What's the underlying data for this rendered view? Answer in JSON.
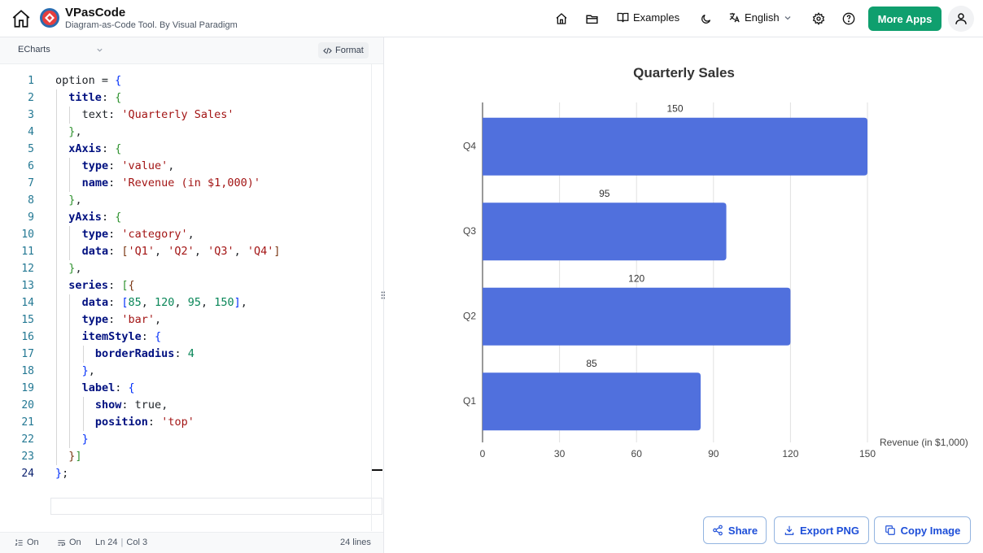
{
  "header": {
    "app_name": "VPasCode",
    "tagline": "Diagram-as-Code Tool. By Visual Paradigm",
    "examples_label": "Examples",
    "language_label": "English",
    "more_apps_label": "More Apps"
  },
  "editor": {
    "language": "ECharts",
    "format_label": "Format",
    "lines": [
      {
        "n": "1",
        "indent": 0,
        "tokens": [
          [
            "plain",
            "option"
          ],
          [
            "plain",
            " = "
          ],
          [
            "b1",
            "{"
          ]
        ]
      },
      {
        "n": "2",
        "indent": 1,
        "tokens": [
          [
            "key",
            "title"
          ],
          [
            "plain",
            ": "
          ],
          [
            "b2",
            "{"
          ]
        ]
      },
      {
        "n": "3",
        "indent": 2,
        "tokens": [
          [
            "plain",
            "text: "
          ],
          [
            "str",
            "'Quarterly Sales'"
          ]
        ]
      },
      {
        "n": "4",
        "indent": 1,
        "tokens": [
          [
            "b2",
            "}"
          ],
          [
            "plain",
            ","
          ]
        ]
      },
      {
        "n": "5",
        "indent": 1,
        "tokens": [
          [
            "key",
            "xAxis"
          ],
          [
            "plain",
            ": "
          ],
          [
            "b2",
            "{"
          ]
        ]
      },
      {
        "n": "6",
        "indent": 2,
        "tokens": [
          [
            "key",
            "type"
          ],
          [
            "plain",
            ": "
          ],
          [
            "str",
            "'value'"
          ],
          [
            "plain",
            ","
          ]
        ]
      },
      {
        "n": "7",
        "indent": 2,
        "tokens": [
          [
            "key",
            "name"
          ],
          [
            "plain",
            ": "
          ],
          [
            "str",
            "'Revenue (in $1,000)'"
          ]
        ]
      },
      {
        "n": "8",
        "indent": 1,
        "tokens": [
          [
            "b2",
            "}"
          ],
          [
            "plain",
            ","
          ]
        ]
      },
      {
        "n": "9",
        "indent": 1,
        "tokens": [
          [
            "key",
            "yAxis"
          ],
          [
            "plain",
            ": "
          ],
          [
            "b2",
            "{"
          ]
        ]
      },
      {
        "n": "10",
        "indent": 2,
        "tokens": [
          [
            "key",
            "type"
          ],
          [
            "plain",
            ": "
          ],
          [
            "str",
            "'category'"
          ],
          [
            "plain",
            ","
          ]
        ]
      },
      {
        "n": "11",
        "indent": 2,
        "tokens": [
          [
            "key",
            "data"
          ],
          [
            "plain",
            ": "
          ],
          [
            "b3",
            "["
          ],
          [
            "str",
            "'Q1'"
          ],
          [
            "plain",
            ", "
          ],
          [
            "str",
            "'Q2'"
          ],
          [
            "plain",
            ", "
          ],
          [
            "str",
            "'Q3'"
          ],
          [
            "plain",
            ", "
          ],
          [
            "str",
            "'Q4'"
          ],
          [
            "b3",
            "]"
          ]
        ]
      },
      {
        "n": "12",
        "indent": 1,
        "tokens": [
          [
            "b2",
            "}"
          ],
          [
            "plain",
            ","
          ]
        ]
      },
      {
        "n": "13",
        "indent": 1,
        "tokens": [
          [
            "key",
            "series"
          ],
          [
            "plain",
            ": "
          ],
          [
            "b2",
            "["
          ],
          [
            "b3",
            "{"
          ]
        ]
      },
      {
        "n": "14",
        "indent": 2,
        "tokens": [
          [
            "key",
            "data"
          ],
          [
            "plain",
            ": "
          ],
          [
            "b1",
            "["
          ],
          [
            "num",
            "85"
          ],
          [
            "plain",
            ", "
          ],
          [
            "num",
            "120"
          ],
          [
            "plain",
            ", "
          ],
          [
            "num",
            "95"
          ],
          [
            "plain",
            ", "
          ],
          [
            "num",
            "150"
          ],
          [
            "b1",
            "]"
          ],
          [
            "plain",
            ","
          ]
        ]
      },
      {
        "n": "15",
        "indent": 2,
        "tokens": [
          [
            "key",
            "type"
          ],
          [
            "plain",
            ": "
          ],
          [
            "str",
            "'bar'"
          ],
          [
            "plain",
            ","
          ]
        ]
      },
      {
        "n": "16",
        "indent": 2,
        "tokens": [
          [
            "key",
            "itemStyle"
          ],
          [
            "plain",
            ": "
          ],
          [
            "b1",
            "{"
          ]
        ]
      },
      {
        "n": "17",
        "indent": 3,
        "tokens": [
          [
            "key",
            "borderRadius"
          ],
          [
            "plain",
            ": "
          ],
          [
            "num",
            "4"
          ]
        ]
      },
      {
        "n": "18",
        "indent": 2,
        "tokens": [
          [
            "b1",
            "}"
          ],
          [
            "plain",
            ","
          ]
        ]
      },
      {
        "n": "19",
        "indent": 2,
        "tokens": [
          [
            "key",
            "label"
          ],
          [
            "plain",
            ": "
          ],
          [
            "b1",
            "{"
          ]
        ]
      },
      {
        "n": "20",
        "indent": 3,
        "tokens": [
          [
            "key",
            "show"
          ],
          [
            "plain",
            ": "
          ],
          [
            "plain",
            "true"
          ],
          [
            "plain",
            ","
          ]
        ]
      },
      {
        "n": "21",
        "indent": 3,
        "tokens": [
          [
            "key",
            "position"
          ],
          [
            "plain",
            ": "
          ],
          [
            "str",
            "'top'"
          ]
        ]
      },
      {
        "n": "22",
        "indent": 2,
        "tokens": [
          [
            "b1",
            "}"
          ]
        ]
      },
      {
        "n": "23",
        "indent": 1,
        "tokens": [
          [
            "b3",
            "}"
          ],
          [
            "b2",
            "]"
          ]
        ]
      },
      {
        "n": "24",
        "indent": 0,
        "tokens": [
          [
            "b1",
            "}"
          ],
          [
            "plain",
            ";"
          ]
        ]
      }
    ],
    "status": {
      "toggle1_label": "On",
      "toggle2_label": "On",
      "cursor_pos": "Ln 24",
      "col_pos": "Col 3",
      "line_count": "24 lines"
    }
  },
  "chart_data": {
    "type": "bar",
    "orientation": "horizontal",
    "title": "Quarterly Sales",
    "xlabel": "Revenue (in $1,000)",
    "ylabel": "",
    "categories": [
      "Q1",
      "Q2",
      "Q3",
      "Q4"
    ],
    "values": [
      85,
      120,
      95,
      150
    ],
    "xlim": [
      0,
      150
    ],
    "xticks": [
      "0",
      "30",
      "60",
      "90",
      "120",
      "150"
    ],
    "grid": true,
    "data_labels": "top",
    "bar_color": "#5070dd"
  },
  "actions": {
    "share_label": "Share",
    "export_label": "Export PNG",
    "copy_label": "Copy Image"
  },
  "colors": {
    "accent": "#0f9f6e",
    "link": "#1d4ed8"
  }
}
